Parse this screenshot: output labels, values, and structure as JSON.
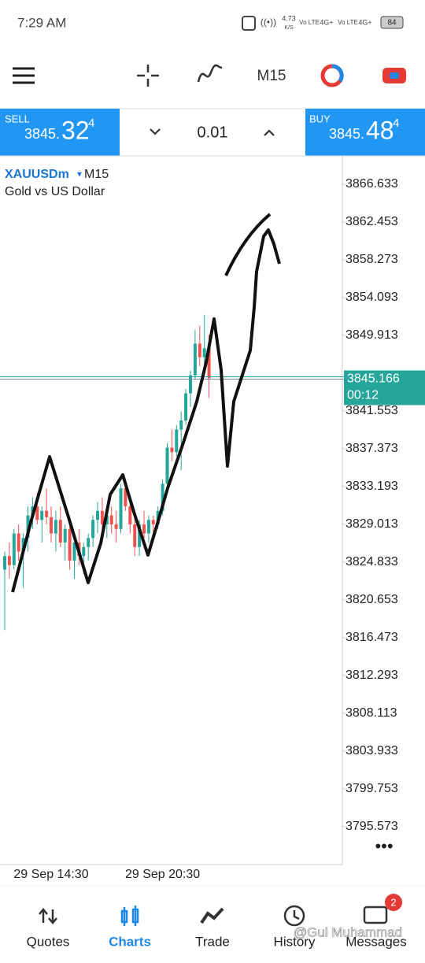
{
  "status": {
    "time": "7:29 AM",
    "speed": "4.73",
    "speed_unit": "K/S",
    "net1": "Vo LTE",
    "net2": "4G+",
    "net3": "Vo LTE",
    "net4": "4G+",
    "battery": "84"
  },
  "toolbar": {
    "timeframe": "M15"
  },
  "trade": {
    "sell": {
      "label": "SELL",
      "price_main": "3845.",
      "price_big": "32",
      "price_sup": "4"
    },
    "lot": "0.01",
    "buy": {
      "label": "BUY",
      "price_main": "3845.",
      "price_big": "48",
      "price_sup": "4"
    }
  },
  "chart_data": {
    "type": "candlestick",
    "symbol": "XAUUSDm",
    "timeframe": "M15",
    "description": "Gold vs US Dollar",
    "up_color": "#26a69a",
    "down_color": "#ef5350",
    "ylim": [
      3791.37,
      3869.77
    ],
    "yticks": [
      3866.633,
      3862.453,
      3858.273,
      3854.093,
      3849.913,
      3841.553,
      3837.373,
      3833.193,
      3829.013,
      3824.833,
      3820.653,
      3816.473,
      3812.293,
      3808.113,
      3803.933,
      3799.753,
      3795.573
    ],
    "current_price": 3845.166,
    "timer": "00:12",
    "categories": [
      null,
      null,
      null,
      null,
      null,
      null,
      null,
      null,
      null,
      null,
      "29 Sep 14:30",
      null,
      null,
      null,
      null,
      null,
      null,
      null,
      null,
      null,
      null,
      null,
      null,
      null,
      null,
      null,
      null,
      null,
      null,
      null,
      null,
      null,
      null,
      null,
      "29 Sep 20:30",
      null,
      null,
      null,
      null,
      null,
      null,
      null,
      null,
      null,
      null
    ],
    "open": [
      3824,
      3825.5,
      3824.5,
      3828,
      3826,
      3827.5,
      3830,
      3831,
      3829.5,
      3830.5,
      3829.8,
      3828,
      3829.5,
      3827,
      3828.5,
      3825,
      3827,
      3825.5,
      3826.5,
      3827.5,
      3829.5,
      3830.5,
      3829,
      3830,
      3829,
      3828.5,
      3833,
      3831,
      3829,
      3826.5,
      3829,
      3828,
      3829.5,
      3829,
      3830.5,
      3833.5,
      3837.5,
      3837,
      3839.5,
      3840.5,
      3843.5,
      3845.5,
      3849,
      3847.5,
      3848.5
    ],
    "high": [
      3826,
      3827,
      3828.5,
      3829,
      3828,
      3831,
      3832,
      3832.5,
      3831,
      3833,
      3831,
      3830.5,
      3831,
      3829,
      3829.5,
      3828,
      3828.5,
      3827,
      3828,
      3830,
      3831.5,
      3832,
      3830.5,
      3831,
      3830.5,
      3833.5,
      3834,
      3832,
      3830,
      3829.5,
      3830.5,
      3830,
      3830,
      3831,
      3834,
      3838,
      3839.5,
      3840,
      3841.5,
      3844,
      3846,
      3850.5,
      3851,
      3852.2,
      3850
    ],
    "low": [
      3817.3,
      3823,
      3824,
      3825,
      3822,
      3826,
      3828.5,
      3829,
      3827,
      3829,
      3827,
      3826,
      3826.5,
      3825,
      3824,
      3823,
      3824.5,
      3823.5,
      3825,
      3826.5,
      3828,
      3828.5,
      3827.5,
      3828,
      3827,
      3828,
      3830.5,
      3828,
      3825.5,
      3825.5,
      3827.5,
      3827,
      3828,
      3828.5,
      3830,
      3833,
      3836,
      3836.5,
      3835,
      3840,
      3842,
      3845,
      3846.5,
      3846,
      3843
    ],
    "close": [
      3825.5,
      3824.5,
      3828,
      3826,
      3827.5,
      3830,
      3831,
      3829.5,
      3830.5,
      3829.8,
      3828,
      3829.5,
      3827,
      3828.5,
      3825,
      3827,
      3825.5,
      3826.5,
      3827.5,
      3829.5,
      3830.5,
      3829,
      3830,
      3829,
      3828.5,
      3833,
      3831,
      3829,
      3826.5,
      3829,
      3828,
      3829.5,
      3829,
      3830.5,
      3833.5,
      3837.5,
      3837,
      3839.5,
      3840.5,
      3843.5,
      3845.5,
      3849,
      3847.5,
      3848.5,
      3845.166
    ]
  },
  "nav": {
    "items": [
      "Quotes",
      "Charts",
      "Trade",
      "History",
      "Messages"
    ],
    "badge": "2",
    "watermark": "@Gul Muhammad"
  }
}
